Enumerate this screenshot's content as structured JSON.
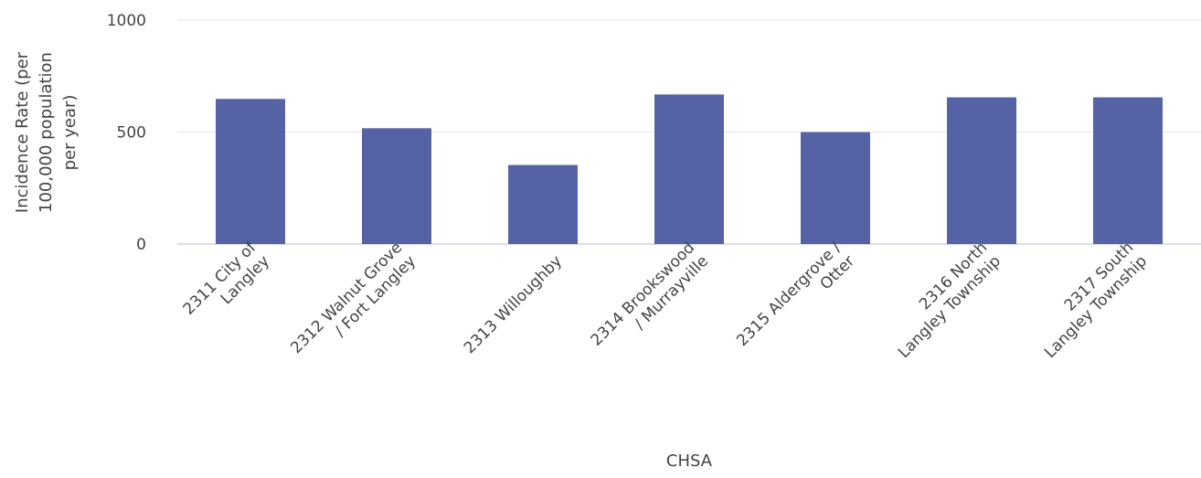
{
  "chart_data": {
    "type": "bar",
    "title": "",
    "xlabel": "CHSA",
    "ylabel_lines": [
      "Incidence Rate (per",
      "100,000 population",
      "per year)"
    ],
    "categories": [
      [
        "2311 City of",
        "Langley"
      ],
      [
        "2312 Walnut Grove",
        "/ Fort Langley"
      ],
      [
        "2313 Willoughby"
      ],
      [
        "2314 Brookswood",
        "/ Murrayville"
      ],
      [
        "2315 Aldergrove /",
        "Otter"
      ],
      [
        "2316 North",
        "Langley Township"
      ],
      [
        "2317 South",
        "Langley Township"
      ]
    ],
    "values": [
      648,
      517,
      353,
      668,
      500,
      655,
      655
    ],
    "ylim": [
      0,
      1000
    ],
    "yticks": [
      0,
      500,
      1000
    ],
    "grid": true,
    "legend": "none",
    "bar_color": "#5563a6"
  }
}
